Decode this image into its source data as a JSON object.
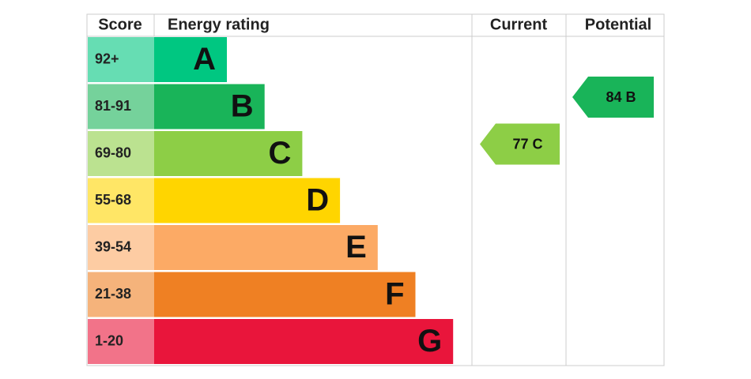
{
  "header": {
    "score": "Score",
    "rating": "Energy rating",
    "current": "Current",
    "potential": "Potential"
  },
  "rows": [
    {
      "score": "92+",
      "rating": "A",
      "color": "#00c781"
    },
    {
      "score": "81-91",
      "rating": "B",
      "color": "#19b459"
    },
    {
      "score": "69-80",
      "rating": "C",
      "color": "#8dce46"
    },
    {
      "score": "55-68",
      "rating": "D",
      "color": "#ffd500"
    },
    {
      "score": "39-54",
      "rating": "E",
      "color": "#fcaa65"
    },
    {
      "score": "21-38",
      "rating": "F",
      "color": "#ef8023"
    },
    {
      "score": "1-20",
      "rating": "G",
      "color": "#e9153b"
    }
  ],
  "current": {
    "score": 77,
    "rating": "C"
  },
  "potential": {
    "score": 84,
    "rating": "B"
  }
}
